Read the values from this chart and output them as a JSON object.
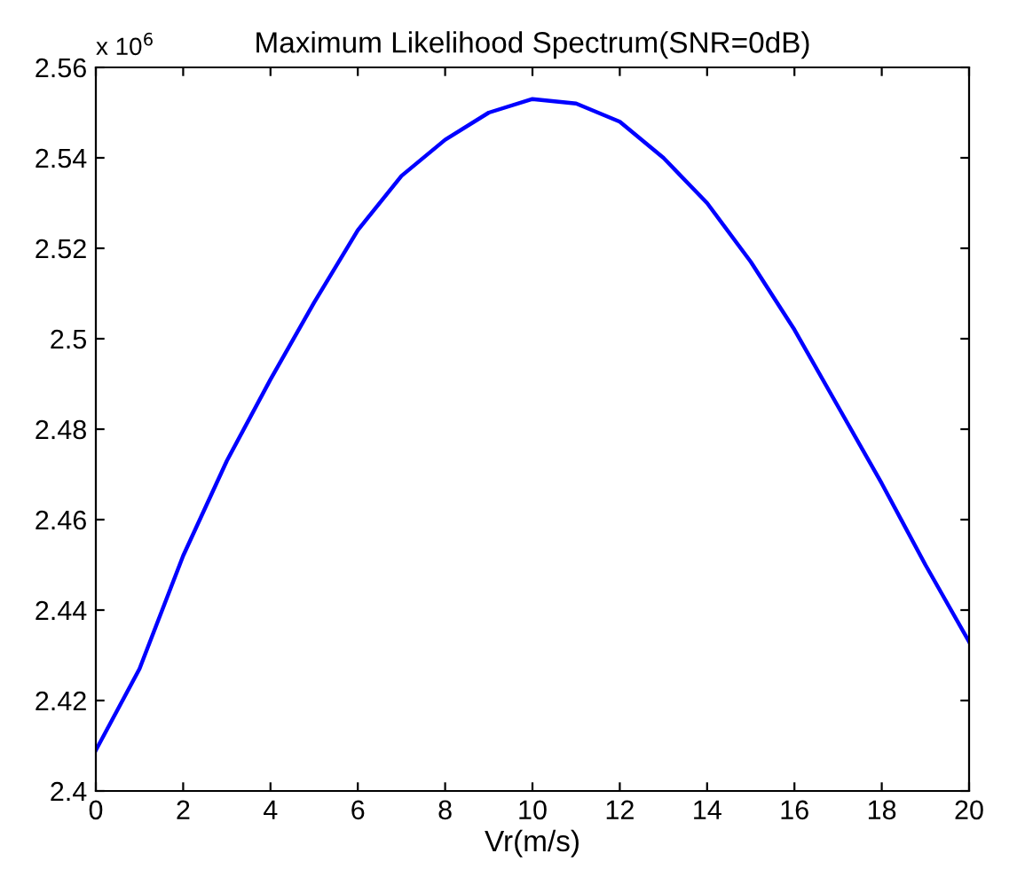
{
  "chart_data": {
    "type": "line",
    "title": "Maximum Likelihood Spectrum(SNR=0dB)",
    "xlabel": "Vr(m/s)",
    "annotations": [
      "x 10$^{6}$"
    ],
    "series": [
      {
        "color": "#0000ff",
        "x": [
          0,
          1,
          2,
          3,
          4,
          5,
          6,
          7,
          8,
          9,
          10,
          11,
          12,
          13,
          14,
          15,
          16,
          17,
          18,
          19,
          20
        ],
        "values": [
          2.409,
          2.427,
          2.452,
          2.473,
          2.491,
          2.508,
          2.524,
          2.536,
          2.544,
          2.55,
          2.553,
          2.552,
          2.548,
          2.54,
          2.53,
          2.517,
          2.502,
          2.485,
          2.468,
          2.45,
          2.433
        ]
      }
    ],
    "xlim": [
      0,
      20
    ],
    "xticks": [
      0,
      2,
      4,
      6,
      8,
      10,
      12,
      14,
      16,
      18,
      20
    ],
    "ylim": [
      2.4,
      2.56
    ],
    "yticks": [
      2.4,
      2.42,
      2.44,
      2.46,
      2.48,
      2.5,
      2.52,
      2.54,
      2.56
    ],
    "grid": false,
    "line_style": "solid",
    "marker": "none"
  }
}
